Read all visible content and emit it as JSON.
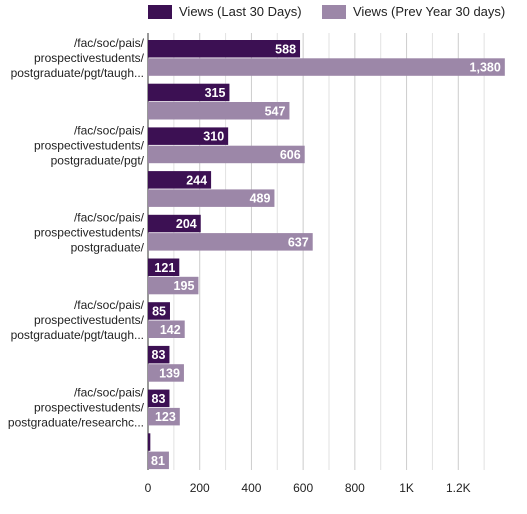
{
  "chart_data": {
    "type": "bar",
    "orientation": "horizontal",
    "grid": true,
    "legend_position": "top",
    "xlim": [
      0,
      1400
    ],
    "xticks": [
      0,
      200,
      400,
      600,
      800,
      1000,
      1200
    ],
    "xtick_labels": [
      "0",
      "200",
      "400",
      "600",
      "800",
      "1K",
      "1.2K"
    ],
    "categories": [
      [
        "/fac/soc/pais/",
        "prospectivestudents/",
        "postgraduate/pgt/taugh..."
      ],
      [],
      [
        "/fac/soc/pais/",
        "prospectivestudents/",
        "postgraduate/pgt/"
      ],
      [],
      [
        "/fac/soc/pais/",
        "prospectivestudents/",
        "postgraduate/"
      ],
      [],
      [
        "/fac/soc/pais/",
        "prospectivestudents/",
        "postgraduate/pgt/taugh..."
      ],
      [],
      [
        "/fac/soc/pais/",
        "prospectivestudents/",
        "postgraduate/researchc..."
      ],
      []
    ],
    "series": [
      {
        "name": "Views (Last 30 Days)",
        "color": "#3c1053",
        "values": [
          588,
          315,
          310,
          244,
          204,
          121,
          85,
          83,
          83,
          9
        ],
        "labels": [
          "588",
          "315",
          "310",
          "244",
          "204",
          "121",
          "85",
          "83",
          "83",
          "9"
        ]
      },
      {
        "name": "Views (Prev Year 30 days)",
        "color": "#9c87a8",
        "values": [
          1380,
          547,
          606,
          489,
          637,
          195,
          142,
          139,
          123,
          81
        ],
        "labels": [
          "1,380",
          "547",
          "606",
          "489",
          "637",
          "195",
          "142",
          "139",
          "123",
          "81"
        ]
      }
    ]
  }
}
